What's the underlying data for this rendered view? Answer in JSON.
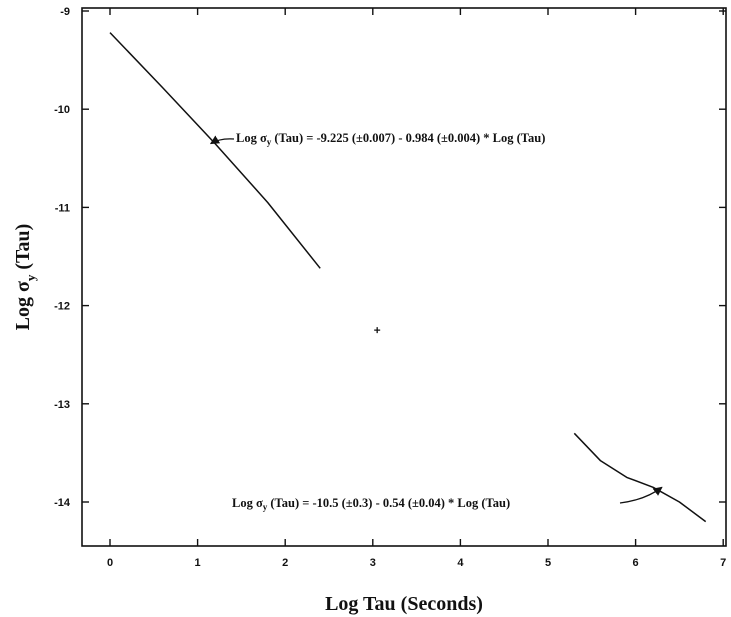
{
  "chart_data": {
    "type": "line",
    "xlabel": "Log Tau (Seconds)",
    "ylabel_parts": {
      "main": "Log σ",
      "sub": "y",
      "tail": " (Tau)"
    },
    "xlim": [
      -0.3,
      7.0
    ],
    "ylim": [
      -14.5,
      -9.0
    ],
    "x_ticks": [
      0,
      1,
      2,
      3,
      4,
      5,
      6,
      7
    ],
    "y_ticks": [
      -9,
      -10,
      -11,
      -12,
      -13,
      -14
    ],
    "grid": false,
    "series": [
      {
        "x": [
          0.0,
          0.6,
          1.2,
          1.8,
          2.4
        ],
        "y": [
          -9.22,
          -9.78,
          -10.35,
          -10.95,
          -11.62
        ]
      },
      {
        "x": [
          5.3,
          5.6,
          5.9,
          6.2,
          6.5,
          6.8
        ],
        "y": [
          -13.3,
          -13.58,
          -13.75,
          -13.85,
          -14.0,
          -14.2
        ]
      }
    ],
    "points": [
      {
        "x": 3.05,
        "y": -12.25,
        "marker": "+"
      }
    ],
    "annotations": [
      {
        "main": "Log σ",
        "sub": "y",
        "tail": " (Tau) = -9.225 (±0.007) - 0.984 (±0.004) * Log (Tau)",
        "arrow_to": [
          1.15,
          -10.35
        ]
      },
      {
        "main": "Log σ",
        "sub": "y",
        "tail": " (Tau) = -10.5 (±0.3) - 0.54 (±0.04) * Log (Tau)",
        "arrow_to": [
          6.3,
          -13.85
        ]
      }
    ]
  }
}
